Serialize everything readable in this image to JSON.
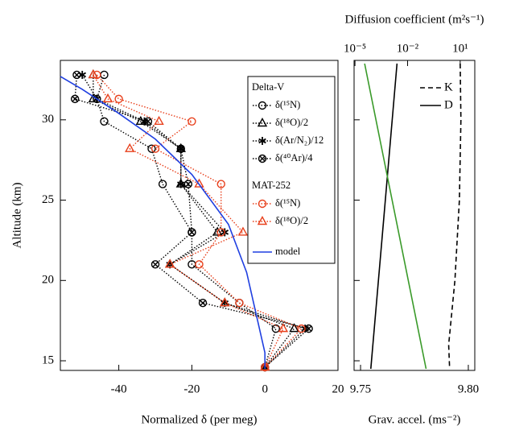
{
  "chart_data": [
    {
      "type": "line",
      "ylabel": "Altitude (km)",
      "xlabel": "Normalized δ (per meg)",
      "xlim": [
        -56,
        20
      ],
      "xticks": [
        -40,
        -20,
        0,
        20
      ],
      "ylim": [
        14.4,
        33.7
      ],
      "yticks": [
        15,
        20,
        25,
        30
      ],
      "grid": false,
      "legend_position": "upper right",
      "series": [
        {
          "name": "δ(¹⁵N)",
          "instrument": "Delta-V",
          "color": "#000000",
          "marker": "circle",
          "linestyle": "dotted",
          "x": [
            -44,
            -46,
            -44,
            -31,
            -28,
            -20,
            -20,
            -7,
            3,
            0
          ],
          "y": [
            32.8,
            31.3,
            29.9,
            28.2,
            26,
            23,
            21,
            18.6,
            17,
            14.6
          ]
        },
        {
          "name": "δ(¹⁸O)/2",
          "instrument": "Delta-V",
          "color": "#000000",
          "marker": "triangle",
          "linestyle": "dotted",
          "x": [
            -47,
            -47,
            -34,
            -23,
            -23,
            -13,
            -26,
            -11,
            8,
            0
          ],
          "y": [
            32.8,
            31.3,
            29.9,
            28.2,
            26,
            23,
            21,
            18.6,
            17,
            14.6
          ]
        },
        {
          "name": "δ(Ar/N₂)/12",
          "instrument": "Delta-V",
          "color": "#000000",
          "marker": "asterisk",
          "linestyle": "dotted",
          "x": [
            -50,
            -46,
            -33,
            -23,
            -23,
            -11,
            -26,
            -11,
            11,
            0
          ],
          "y": [
            32.8,
            31.3,
            29.9,
            28.2,
            26,
            23,
            21,
            18.6,
            17,
            14.6
          ]
        },
        {
          "name": "δ(⁴⁰Ar)/4",
          "instrument": "Delta-V",
          "color": "#000000",
          "marker": "circlex",
          "linestyle": "dotted",
          "x": [
            -51.5,
            -52,
            -32,
            -23,
            -21,
            -20,
            -30,
            -17,
            12,
            0
          ],
          "y": [
            32.8,
            31.3,
            29.9,
            28.2,
            26,
            23,
            21,
            18.6,
            17,
            14.6
          ]
        },
        {
          "name": "δ(¹⁵N)",
          "instrument": "MAT-252",
          "color": "#e8401c",
          "marker": "circle",
          "linestyle": "dotted",
          "x": [
            -46,
            -40,
            -20,
            -30,
            -12,
            -12,
            -18,
            -7,
            10,
            0
          ],
          "y": [
            32.8,
            31.3,
            29.9,
            28.2,
            26,
            23,
            21,
            18.6,
            17,
            14.6
          ]
        },
        {
          "name": "δ(¹⁸O)/2",
          "instrument": "MAT-252",
          "color": "#e8401c",
          "marker": "triangle",
          "linestyle": "dotted",
          "x": [
            -47,
            -43,
            -29,
            -37,
            -18,
            -6,
            -26,
            -11,
            5,
            0
          ],
          "y": [
            32.8,
            31.3,
            29.9,
            28.2,
            26,
            23,
            21,
            18.6,
            17,
            14.6
          ]
        },
        {
          "name": "model",
          "color": "#1f3fe0",
          "marker": "none",
          "linestyle": "solid",
          "x": [
            -56,
            -50,
            -40,
            -30,
            -20,
            -10,
            -5,
            -2,
            0,
            0
          ],
          "y": [
            32.7,
            31.9,
            30.4,
            28.8,
            26.6,
            23.5,
            20.5,
            17.5,
            15.5,
            14.5
          ]
        }
      ]
    },
    {
      "type": "line",
      "xlabel": "Grav. accel. (ms⁻²)",
      "x2label": "Diffusion coefficient  (m²s⁻¹)",
      "xlim": [
        9.747,
        9.803
      ],
      "xticks": [
        9.75,
        {
          "value": 9.8,
          "label": "9.80"
        }
      ],
      "xtick_color": "#3a9a2a",
      "x2lim": [
        8.9e-06,
        68
      ],
      "x2log": true,
      "x2ticks": [
        {
          "value": 1e-05,
          "label": "10⁻⁵"
        },
        {
          "value": 0.01,
          "label": "10⁻²"
        },
        {
          "value": 10,
          "label": "10¹"
        }
      ],
      "ylim": [
        14.4,
        33.7
      ],
      "yticks": [
        15,
        20,
        25,
        30
      ],
      "ytick_labels": false,
      "legend_position": "upper right",
      "series": [
        {
          "name": "K",
          "color": "#000000",
          "linestyle": "dashed",
          "axis": "x2",
          "x": [
            10,
            11,
            9,
            5,
            2.2,
            2.5
          ],
          "y": [
            33.5,
            30,
            25,
            20,
            16,
            14.5
          ]
        },
        {
          "name": "D",
          "color": "#000000",
          "linestyle": "solid",
          "axis": "x2",
          "x": [
            0.0025,
            0.00045,
            8e-05
          ],
          "y": [
            33.5,
            24,
            14.5
          ]
        },
        {
          "color": "#3a9a2a",
          "linestyle": "solid",
          "x": [
            9.7519,
            9.7804
          ],
          "y": [
            33.5,
            14.5
          ]
        }
      ]
    }
  ]
}
